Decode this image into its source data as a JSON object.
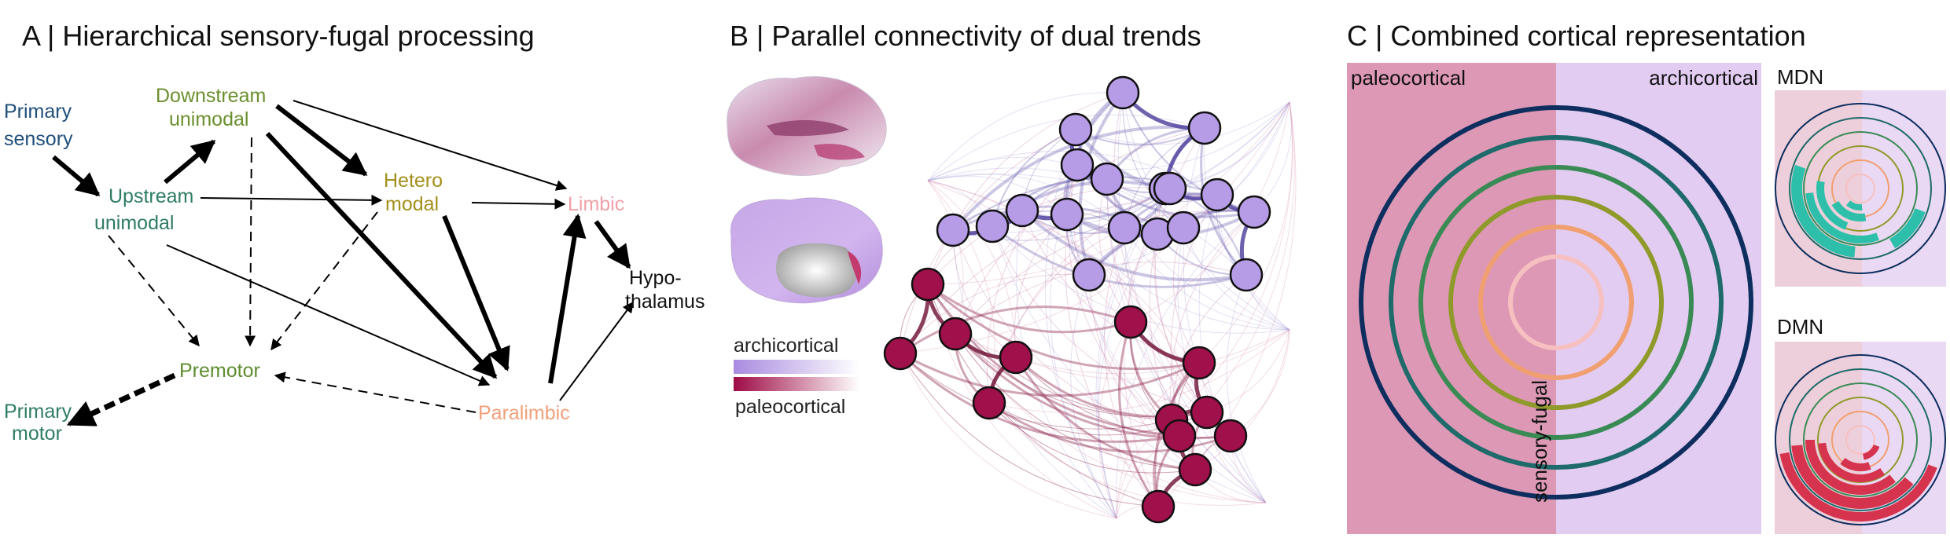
{
  "panel_a": {
    "title": "A | Hierarchical sensory-fugal processing",
    "nodes": {
      "primary_sensory": [
        "Primary",
        "sensory"
      ],
      "upstream": [
        "Upstream",
        "unimodal"
      ],
      "downstream": [
        "Downstream",
        "unimodal"
      ],
      "hetero": [
        "Hetero",
        "modal"
      ],
      "limbic": "Limbic",
      "hypothalamus": [
        "Hypo-",
        "thalamus"
      ],
      "premotor": "Premotor",
      "primary_motor": [
        "Primary",
        "motor"
      ],
      "paralimbic": "Paralimbic"
    },
    "colors": {
      "primary": "#1f4e79",
      "uni": "#2e7d62",
      "downstream": "#6a8f2c",
      "hetero": "#a38f1a",
      "limbic": "#f2a0a8",
      "paralimbic": "#f0a07a",
      "premotor": "#5d8c2e"
    }
  },
  "panel_b": {
    "title": "B | Parallel connectivity of dual trends",
    "legend_archi": "archicortical",
    "legend_paleo": "paleocortical",
    "colors": {
      "archi": "#b69be6",
      "paleo": "#a0104a"
    }
  },
  "panel_c": {
    "title": "C | Combined cortical representation",
    "left_label": "paleocortical",
    "right_label": "archicortical",
    "axis_label": "sensory-fugal",
    "mdn_label": "MDN",
    "dmn_label": "DMN",
    "ring_colors": [
      "#0d2e5e",
      "#1f6a6a",
      "#3a8a55",
      "#8f9a2a",
      "#f0a070",
      "#f7c0c0"
    ],
    "colors": {
      "paleo_bg": "#dc98b4",
      "archi_bg": "#e3ccf2",
      "mdn": "#2ebfaa",
      "dmn": "#d6334e"
    }
  }
}
